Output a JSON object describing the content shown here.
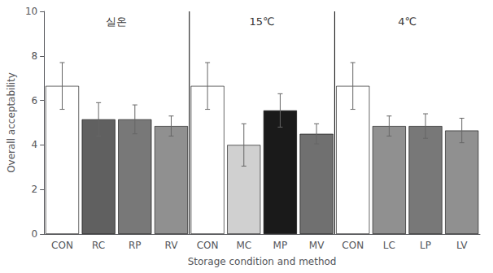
{
  "chart_data": {
    "type": "bar",
    "xlabel": "Storage condition and method",
    "ylabel": "Overall acceptability",
    "categories": [
      "CON",
      "RC",
      "RP",
      "RV",
      "CON",
      "MC",
      "MP",
      "MV",
      "CON",
      "LC",
      "LP",
      "LV"
    ],
    "values": [
      6.65,
      5.15,
      5.15,
      4.85,
      6.65,
      4.0,
      5.55,
      4.5,
      6.65,
      4.85,
      4.85,
      4.65
    ],
    "errors": [
      1.05,
      0.75,
      0.65,
      0.45,
      1.05,
      0.95,
      0.75,
      0.45,
      1.05,
      0.45,
      0.55,
      0.55
    ],
    "colors": [
      "#ffffff",
      "#606060",
      "#787878",
      "#909090",
      "#ffffff",
      "#d0d0d0",
      "#1a1a1a",
      "#707070",
      "#ffffff",
      "#909090",
      "#787878",
      "#909090"
    ],
    "annotations": [
      {
        "text": "실온",
        "y": 9.3
      },
      {
        "text": "15℃",
        "y": 9.3
      },
      {
        "text": "4℃",
        "y": 9.3
      }
    ],
    "ylim": [
      0,
      10
    ],
    "yticks": [
      0,
      2,
      4,
      6,
      8,
      10
    ],
    "grid": false
  }
}
